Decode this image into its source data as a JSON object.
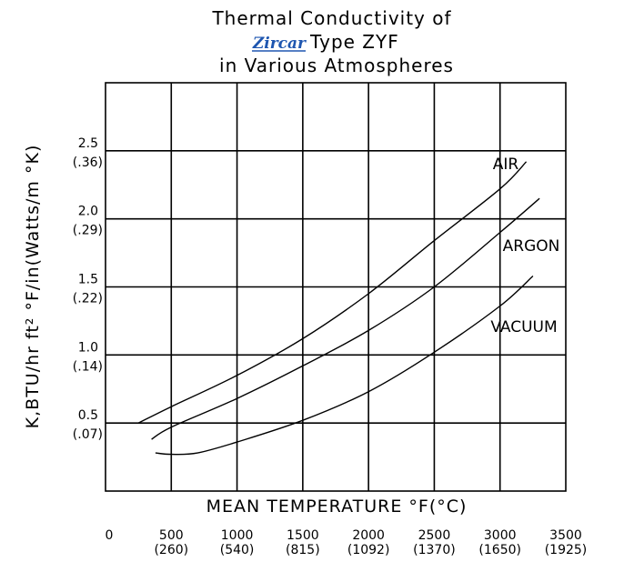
{
  "chart_data": {
    "type": "line",
    "title_line1": "Thermal Conductivity of",
    "title_logo": "Zircar",
    "title_line2": "Type ZYF",
    "title_line3": "in Various Atmospheres",
    "xlabel": "MEAN TEMPERATURE °F(°C)",
    "ylabel": "K,BTU/hr ft² °F/in(Watts/m °K)",
    "xlim": [
      0,
      3500
    ],
    "ylim": [
      0,
      3.0
    ],
    "x_ticks": [
      {
        "value": 0,
        "label": "0",
        "sub": ""
      },
      {
        "value": 500,
        "label": "500",
        "sub": "(260)"
      },
      {
        "value": 1000,
        "label": "1000",
        "sub": "(540)"
      },
      {
        "value": 1500,
        "label": "1500",
        "sub": "(815)"
      },
      {
        "value": 2000,
        "label": "2000",
        "sub": "(1092)"
      },
      {
        "value": 2500,
        "label": "2500",
        "sub": "(1370)"
      },
      {
        "value": 3000,
        "label": "3000",
        "sub": "(1650)"
      },
      {
        "value": 3500,
        "label": "3500",
        "sub": "(1925)"
      }
    ],
    "y_ticks": [
      {
        "value": 0.5,
        "label": "0.5",
        "sub": "(.07)"
      },
      {
        "value": 1.0,
        "label": "1.0",
        "sub": "(.14)"
      },
      {
        "value": 1.5,
        "label": "1.5",
        "sub": "(.22)"
      },
      {
        "value": 2.0,
        "label": "2.0",
        "sub": "(.29)"
      },
      {
        "value": 2.5,
        "label": "2.5",
        "sub": "(.36)"
      }
    ],
    "grid": true,
    "series": [
      {
        "name": "AIR",
        "x": [
          250,
          500,
          1000,
          1500,
          2000,
          2500,
          3000,
          3200
        ],
        "y": [
          0.5,
          0.62,
          0.85,
          1.12,
          1.45,
          1.84,
          2.22,
          2.42
        ]
      },
      {
        "name": "ARGON",
        "x": [
          350,
          500,
          1000,
          1500,
          2000,
          2500,
          3000,
          3300
        ],
        "y": [
          0.38,
          0.47,
          0.68,
          0.92,
          1.18,
          1.5,
          1.9,
          2.15
        ]
      },
      {
        "name": "VACUUM",
        "x": [
          380,
          500,
          700,
          1000,
          1500,
          2000,
          2500,
          3000,
          3250
        ],
        "y": [
          0.28,
          0.27,
          0.28,
          0.36,
          0.52,
          0.73,
          1.02,
          1.36,
          1.58
        ]
      }
    ]
  }
}
